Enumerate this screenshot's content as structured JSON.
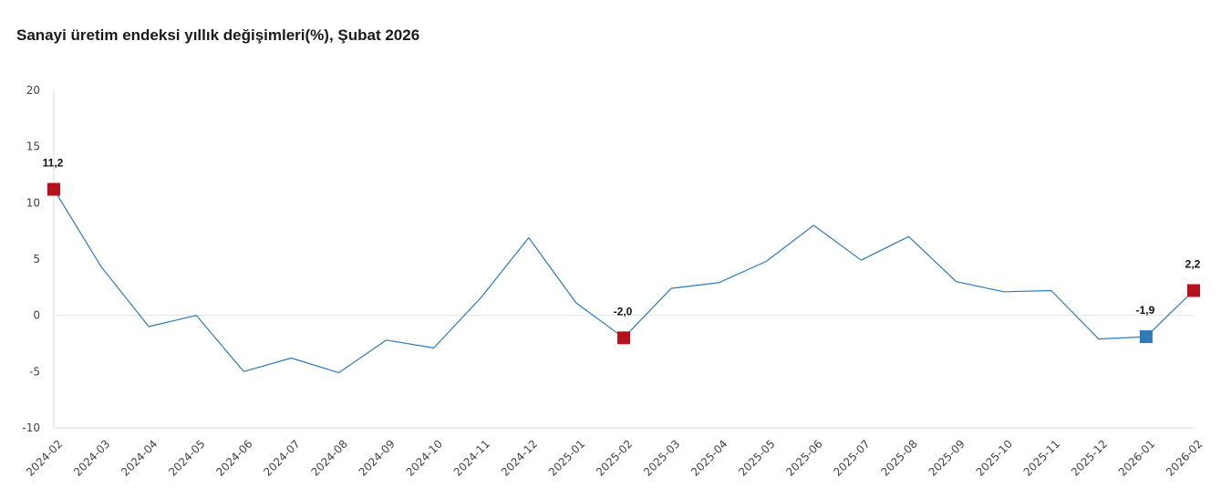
{
  "title": "Sanayi üretim endeksi yıllık değişimleri(%), Şubat 2026",
  "chart_data": {
    "type": "line",
    "title": "Sanayi üretim endeksi yıllık değişimleri(%), Şubat 2026",
    "xlabel": "",
    "ylabel": "",
    "ylim": [
      -10,
      20
    ],
    "yticks": [
      "-10",
      "-5",
      "0",
      "5",
      "10",
      "15",
      "20"
    ],
    "grid": "zero-line only",
    "legend": "none",
    "categories": [
      "2024-02",
      "2024-03",
      "2024-04",
      "2024-05",
      "2024-06",
      "2024-07",
      "2024-08",
      "2024-09",
      "2024-10",
      "2024-11",
      "2024-12",
      "2025-01",
      "2025-02",
      "2025-03",
      "2025-04",
      "2025-05",
      "2025-06",
      "2025-07",
      "2025-08",
      "2025-09",
      "2025-10",
      "2025-11",
      "2025-12",
      "2026-01",
      "2026-02"
    ],
    "series": [
      {
        "values": [
          11.2,
          4.3,
          -1.0,
          0.0,
          -5.0,
          -3.8,
          -5.1,
          -2.2,
          -2.9,
          1.6,
          6.9,
          1.1,
          -2.0,
          2.4,
          2.9,
          4.8,
          8.0,
          4.9,
          7.0,
          3.0,
          2.1,
          2.2,
          -2.1,
          -1.9,
          2.2
        ],
        "color": "#2e7ab8"
      }
    ],
    "annotations": [
      {
        "category": "2024-02",
        "label": "11,2",
        "color": "#b5121b"
      },
      {
        "category": "2025-02",
        "label": "-2,0",
        "color": "#b5121b"
      },
      {
        "category": "2026-01",
        "label": "-1,9",
        "color": "#2e7ab8"
      },
      {
        "category": "2026-02",
        "label": "2,2",
        "color": "#b5121b"
      }
    ]
  }
}
